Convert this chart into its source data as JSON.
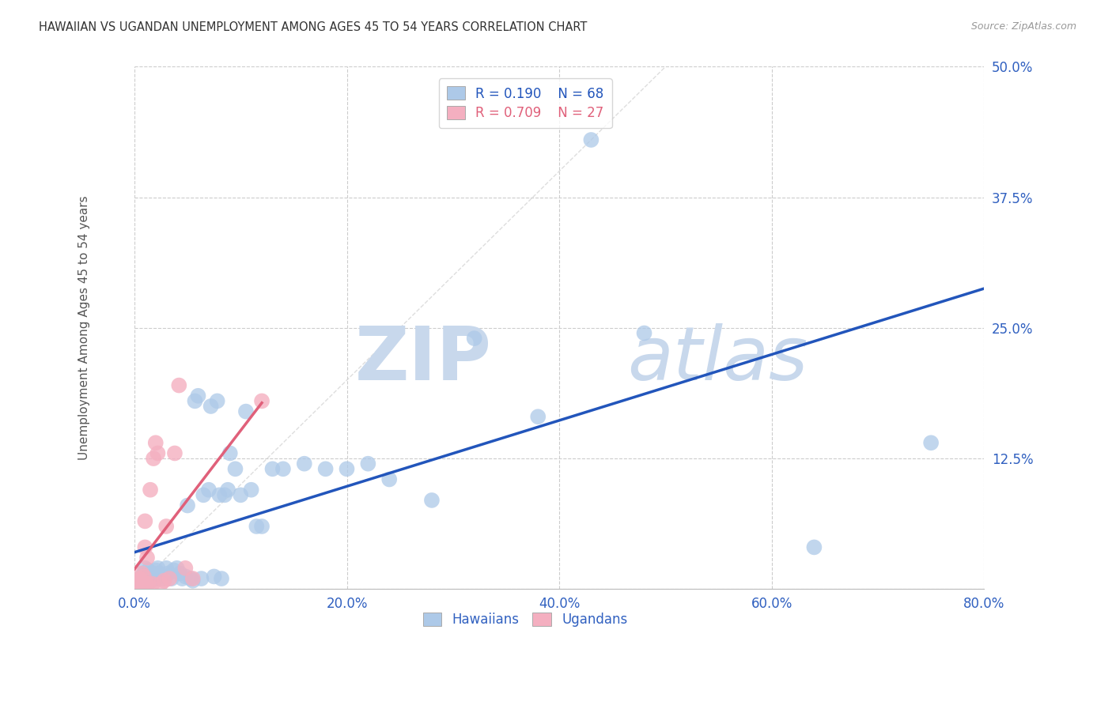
{
  "title": "HAWAIIAN VS UGANDAN UNEMPLOYMENT AMONG AGES 45 TO 54 YEARS CORRELATION CHART",
  "source": "Source: ZipAtlas.com",
  "ylabel": "Unemployment Among Ages 45 to 54 years",
  "xlim": [
    0.0,
    0.8
  ],
  "ylim": [
    0.0,
    0.5
  ],
  "xticks": [
    0.0,
    0.2,
    0.4,
    0.6,
    0.8
  ],
  "xticklabels": [
    "0.0%",
    "20.0%",
    "40.0%",
    "60.0%",
    "80.0%"
  ],
  "yticks": [
    0.0,
    0.125,
    0.25,
    0.375,
    0.5
  ],
  "yticklabels": [
    "",
    "12.5%",
    "25.0%",
    "37.5%",
    "50.0%"
  ],
  "hawaiian_color": "#adc9e8",
  "ugandan_color": "#f4afc0",
  "hawaiian_line_color": "#2255bb",
  "ugandan_line_color": "#e0607a",
  "diagonal_color": "#d0d0d0",
  "R_hawaiian": 0.19,
  "N_hawaiian": 68,
  "R_ugandan": 0.709,
  "N_ugandan": 27,
  "hawaiian_x": [
    0.005,
    0.006,
    0.007,
    0.008,
    0.009,
    0.01,
    0.01,
    0.011,
    0.011,
    0.012,
    0.013,
    0.014,
    0.015,
    0.016,
    0.017,
    0.018,
    0.019,
    0.02,
    0.021,
    0.022,
    0.023,
    0.025,
    0.027,
    0.028,
    0.03,
    0.032,
    0.035,
    0.037,
    0.04,
    0.043,
    0.045,
    0.048,
    0.05,
    0.053,
    0.055,
    0.057,
    0.06,
    0.063,
    0.065,
    0.07,
    0.072,
    0.075,
    0.078,
    0.08,
    0.082,
    0.085,
    0.088,
    0.09,
    0.095,
    0.1,
    0.105,
    0.11,
    0.115,
    0.12,
    0.13,
    0.14,
    0.16,
    0.18,
    0.2,
    0.22,
    0.24,
    0.28,
    0.32,
    0.38,
    0.43,
    0.48,
    0.64,
    0.75
  ],
  "hawaiian_y": [
    0.01,
    0.008,
    0.012,
    0.01,
    0.015,
    0.008,
    0.02,
    0.01,
    0.015,
    0.012,
    0.018,
    0.01,
    0.012,
    0.008,
    0.015,
    0.01,
    0.012,
    0.018,
    0.01,
    0.02,
    0.015,
    0.01,
    0.012,
    0.01,
    0.02,
    0.015,
    0.01,
    0.018,
    0.02,
    0.015,
    0.01,
    0.012,
    0.08,
    0.01,
    0.008,
    0.18,
    0.185,
    0.01,
    0.09,
    0.095,
    0.175,
    0.012,
    0.18,
    0.09,
    0.01,
    0.09,
    0.095,
    0.13,
    0.115,
    0.09,
    0.17,
    0.095,
    0.06,
    0.06,
    0.115,
    0.115,
    0.12,
    0.115,
    0.115,
    0.12,
    0.105,
    0.085,
    0.24,
    0.165,
    0.43,
    0.245,
    0.04,
    0.14
  ],
  "ugandan_x": [
    0.002,
    0.003,
    0.004,
    0.005,
    0.006,
    0.007,
    0.008,
    0.009,
    0.01,
    0.01,
    0.011,
    0.012,
    0.013,
    0.015,
    0.017,
    0.018,
    0.02,
    0.022,
    0.025,
    0.028,
    0.03,
    0.033,
    0.038,
    0.042,
    0.048,
    0.055,
    0.12
  ],
  "ugandan_y": [
    0.005,
    0.008,
    0.003,
    0.01,
    0.008,
    0.015,
    0.005,
    0.012,
    0.04,
    0.065,
    0.005,
    0.03,
    0.005,
    0.095,
    0.005,
    0.125,
    0.14,
    0.13,
    0.005,
    0.008,
    0.06,
    0.01,
    0.13,
    0.195,
    0.02,
    0.01,
    0.18
  ],
  "watermark_zip": "ZIP",
  "watermark_atlas": "atlas",
  "watermark_color_zip": "#c8d8ec",
  "watermark_color_atlas": "#c8d8ec",
  "background_color": "#ffffff",
  "grid_color": "#cccccc"
}
